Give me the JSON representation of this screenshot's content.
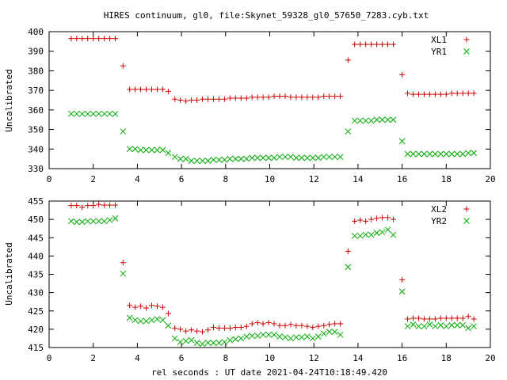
{
  "chart_data": [
    {
      "type": "scatter",
      "title": "HIRES continuum, gl0, file:Skynet_59328_gl0_57650_7283.cyb.txt",
      "xlabel": "",
      "ylabel": "Uncalibrated",
      "xlim": [
        0,
        20
      ],
      "ylim": [
        330,
        400
      ],
      "xticks": [
        0,
        2,
        4,
        6,
        8,
        10,
        12,
        14,
        16,
        18,
        20
      ],
      "yticks": [
        330,
        340,
        350,
        360,
        370,
        380,
        390,
        400
      ],
      "legend_position": "top-right",
      "x": [
        1.0,
        1.25,
        1.5,
        1.75,
        2.0,
        2.25,
        2.5,
        2.75,
        3.0,
        3.35,
        3.65,
        3.9,
        4.15,
        4.4,
        4.65,
        4.9,
        5.15,
        5.4,
        5.7,
        5.95,
        6.2,
        6.45,
        6.7,
        6.95,
        7.2,
        7.45,
        7.7,
        7.95,
        8.2,
        8.45,
        8.7,
        8.95,
        9.2,
        9.45,
        9.7,
        9.95,
        10.2,
        10.45,
        10.7,
        10.95,
        11.2,
        11.45,
        11.7,
        11.95,
        12.2,
        12.45,
        12.7,
        12.95,
        13.2,
        13.55,
        13.85,
        14.1,
        14.35,
        14.6,
        14.85,
        15.1,
        15.35,
        15.6,
        16.0,
        16.25,
        16.5,
        16.75,
        17.0,
        17.25,
        17.5,
        17.75,
        18.0,
        18.25,
        18.5,
        18.75,
        19.0,
        19.25
      ],
      "series": [
        {
          "name": "XL1",
          "color": "#cc0000",
          "marker": "+",
          "values": [
            396.5,
            396.5,
            396.5,
            396.5,
            396.5,
            396.5,
            396.5,
            396.5,
            396.5,
            382.5,
            370.5,
            370.5,
            370.5,
            370.5,
            370.5,
            370.5,
            370.5,
            369.5,
            365.5,
            365,
            364.5,
            365,
            365,
            365.5,
            365.5,
            365.5,
            365.5,
            365.5,
            366,
            366,
            366,
            366,
            366.5,
            366.5,
            366.5,
            366.5,
            367,
            367,
            367,
            366.5,
            366.5,
            366.5,
            366.5,
            366.5,
            366.5,
            367,
            367,
            367,
            367,
            385.5,
            393.5,
            393.5,
            393.5,
            393.5,
            393.5,
            393.5,
            393.5,
            393.5,
            378,
            368.5,
            368,
            368,
            368,
            368,
            368,
            368,
            368,
            368.5,
            368.5,
            368.5,
            368.5,
            368.5
          ]
        },
        {
          "name": "YR1",
          "color": "#00aa00",
          "marker": "x",
          "values": [
            358,
            358,
            358,
            358,
            358,
            358,
            358,
            358,
            358,
            349,
            340,
            340,
            339.5,
            339.5,
            339.5,
            339.5,
            339.5,
            338,
            336,
            335,
            335,
            334,
            334,
            334,
            334,
            334.5,
            334.5,
            334.5,
            335,
            335,
            335,
            335,
            335.5,
            335.5,
            335.5,
            335.5,
            335.5,
            336,
            336,
            336,
            335.5,
            335.5,
            335.5,
            335.5,
            335.5,
            336,
            336,
            336,
            336,
            349,
            354.5,
            354.5,
            354.5,
            354.5,
            355,
            355,
            355,
            355,
            344,
            337.5,
            337.5,
            337.5,
            337.5,
            337.5,
            337.5,
            337.5,
            337.5,
            337.5,
            337.5,
            337.5,
            338,
            338
          ]
        }
      ]
    },
    {
      "type": "scatter",
      "title": "",
      "xlabel": "rel seconds : UT date 2021-04-24T10:18:49.420",
      "ylabel": "Uncalibrated",
      "xlim": [
        0,
        20
      ],
      "ylim": [
        415,
        455
      ],
      "xticks": [
        0,
        2,
        4,
        6,
        8,
        10,
        12,
        14,
        16,
        18,
        20
      ],
      "yticks": [
        415,
        420,
        425,
        430,
        435,
        440,
        445,
        450,
        455
      ],
      "legend_position": "top-right",
      "x": [
        1.0,
        1.25,
        1.5,
        1.75,
        2.0,
        2.25,
        2.5,
        2.75,
        3.0,
        3.35,
        3.65,
        3.9,
        4.15,
        4.4,
        4.65,
        4.9,
        5.15,
        5.4,
        5.7,
        5.95,
        6.2,
        6.45,
        6.7,
        6.95,
        7.2,
        7.45,
        7.7,
        7.95,
        8.2,
        8.45,
        8.7,
        8.95,
        9.2,
        9.45,
        9.7,
        9.95,
        10.2,
        10.45,
        10.7,
        10.95,
        11.2,
        11.45,
        11.7,
        11.95,
        12.2,
        12.45,
        12.7,
        12.95,
        13.2,
        13.55,
        13.85,
        14.1,
        14.35,
        14.6,
        14.85,
        15.1,
        15.35,
        15.6,
        16.0,
        16.25,
        16.5,
        16.75,
        17.0,
        17.25,
        17.5,
        17.75,
        18.0,
        18.25,
        18.5,
        18.75,
        19.0,
        19.25
      ],
      "series": [
        {
          "name": "XL2",
          "color": "#cc0000",
          "marker": "+",
          "values": [
            453.8,
            453.8,
            453.3,
            453.8,
            453.8,
            454.1,
            453.9,
            453.9,
            453.9,
            438.2,
            426.5,
            426,
            426.3,
            425.8,
            426.5,
            426.3,
            426,
            424.3,
            420.3,
            420,
            419.5,
            419.8,
            419.5,
            419.3,
            419.8,
            420.5,
            420.3,
            420.3,
            420.3,
            420.5,
            420.5,
            420.8,
            421.5,
            421.8,
            421.5,
            421.8,
            421.5,
            421,
            421,
            421.3,
            421,
            421,
            420.8,
            420.5,
            420.8,
            421,
            421.3,
            421.5,
            421.5,
            441.3,
            449.5,
            449.8,
            449.5,
            450,
            450.3,
            450.5,
            450.5,
            450,
            433.5,
            422.8,
            423,
            423,
            422.8,
            422.8,
            422.8,
            423,
            423,
            423,
            423,
            423,
            423.5,
            422.8
          ]
        },
        {
          "name": "YR2",
          "color": "#00aa00",
          "marker": "x",
          "values": [
            449.5,
            449.3,
            449.3,
            449.5,
            449.5,
            449.5,
            449.5,
            449.8,
            450.3,
            435.2,
            423.1,
            422.5,
            422.2,
            422.2,
            422.5,
            422.8,
            422.5,
            421,
            417.5,
            416.5,
            416.8,
            417,
            416.3,
            416,
            416.3,
            416.3,
            416.3,
            416.5,
            417,
            417.3,
            417.5,
            418,
            418.2,
            418.2,
            418.5,
            418.5,
            418.5,
            418,
            417.8,
            417.5,
            417.8,
            417.8,
            418,
            417.5,
            418,
            418.8,
            419.3,
            419.3,
            418.5,
            437,
            445.5,
            445.5,
            445.8,
            445.8,
            446.3,
            446.5,
            447.2,
            445.8,
            430.3,
            420.8,
            421.3,
            420.8,
            420.8,
            421.3,
            420.8,
            421.1,
            420.8,
            421.1,
            421.1,
            421.1,
            420.3,
            420.8
          ]
        }
      ]
    }
  ]
}
